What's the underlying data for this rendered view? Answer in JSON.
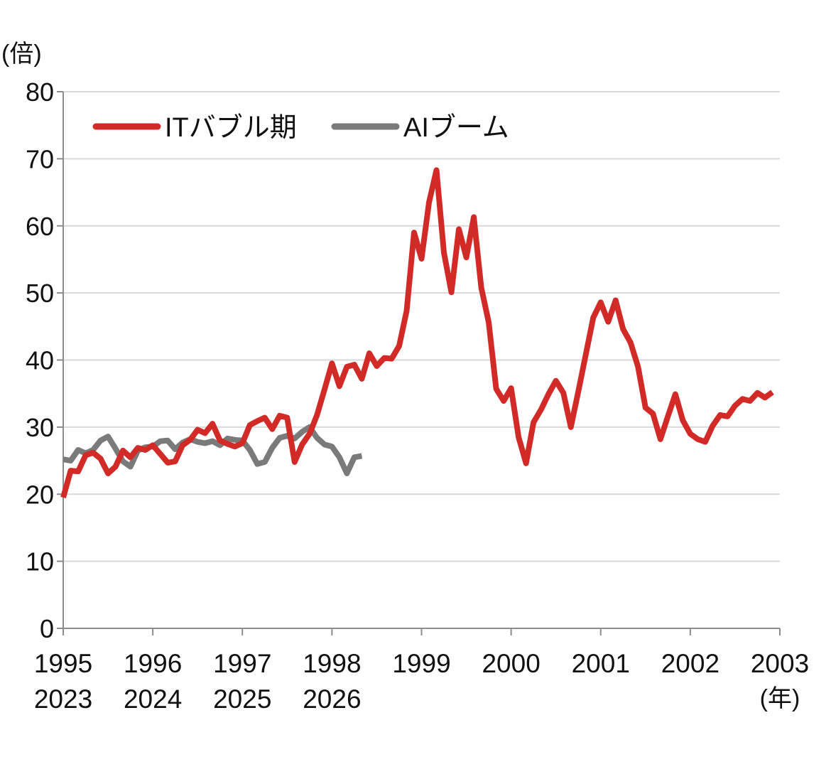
{
  "chart_data": {
    "type": "line",
    "y_unit_label": "(倍)",
    "x_unit_label": "(年)",
    "ylim": [
      0,
      80
    ],
    "y_ticks": [
      0,
      10,
      20,
      30,
      40,
      50,
      60,
      70,
      80
    ],
    "grid": true,
    "legend_position": "top-left",
    "x_ticks_top": [
      "1995",
      "1996",
      "1997",
      "1998",
      "1999",
      "2000",
      "2001",
      "2002",
      "2003"
    ],
    "x_ticks_bottom": [
      "2023",
      "2024",
      "2025",
      "2026"
    ],
    "x_range_quarters": [
      0,
      32
    ],
    "series": [
      {
        "name": "ITバブル期",
        "color": "#d22b27",
        "values": [
          19.5,
          23.5,
          23.4,
          25.8,
          26.2,
          25.3,
          23.1,
          24.1,
          26.5,
          25.5,
          26.9,
          26.6,
          27.3,
          26.0,
          24.7,
          24.9,
          27.3,
          28.1,
          29.6,
          29.1,
          30.5,
          28.0,
          27.5,
          27.1,
          27.6,
          30.3,
          30.9,
          31.4,
          29.7,
          31.7,
          31.4,
          24.8,
          27.4,
          29.0,
          31.8,
          35.6,
          39.5,
          36.1,
          39.0,
          39.3,
          37.2,
          41.0,
          39.1,
          40.3,
          40.2,
          42.1,
          47.3,
          59.0,
          55.1,
          63.5,
          68.3,
          56.0,
          50.1,
          59.5,
          55.3,
          61.3,
          50.8,
          45.6,
          35.7,
          33.9,
          35.8,
          28.5,
          24.6,
          30.7,
          32.6,
          34.9,
          36.9,
          35.1,
          30.0,
          35.3,
          40.8,
          46.3,
          48.6,
          45.7,
          48.9,
          44.6,
          42.6,
          39.0,
          32.9,
          32.0,
          28.2,
          31.6,
          34.9,
          31.0,
          29.0,
          28.2,
          27.8,
          30.2,
          31.8,
          31.6,
          33.2,
          34.2,
          33.9,
          35.1,
          34.4,
          35.2
        ]
      },
      {
        "name": "AIブーム",
        "color": "#7a7a7a",
        "values": [
          25.2,
          25.0,
          26.6,
          26.1,
          26.6,
          28.0,
          28.6,
          26.8,
          24.9,
          24.1,
          26.5,
          27.0,
          27.1,
          27.9,
          28.0,
          26.7,
          27.7,
          28.2,
          27.8,
          27.6,
          27.9,
          27.3,
          28.3,
          28.1,
          28.0,
          26.6,
          24.5,
          24.8,
          26.9,
          28.4,
          28.7,
          28.3,
          29.3,
          30.0,
          28.4,
          27.4,
          27.1,
          25.5,
          23.1,
          25.5,
          25.7
        ]
      }
    ]
  }
}
